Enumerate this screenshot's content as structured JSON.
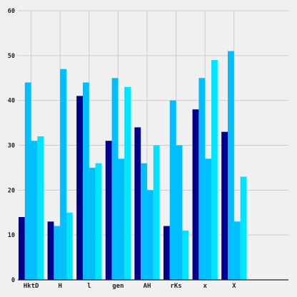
{
  "chart_data": {
    "type": "bar",
    "title": "",
    "xlabel": "",
    "ylabel": "",
    "ylim": [
      0,
      60
    ],
    "yticks": [
      "0",
      "10",
      "20",
      "30",
      "40",
      "50",
      "60"
    ],
    "grid": true,
    "categories": [
      "HktD",
      "H",
      "l",
      "gen",
      "AH",
      "rKs",
      "x",
      "X"
    ],
    "series": [
      {
        "color": "#00008b",
        "values": [
          14,
          13,
          41,
          31,
          34,
          12,
          38,
          33
        ]
      },
      {
        "color": "#00bfff",
        "values": [
          44,
          12,
          44,
          45,
          26,
          40,
          45,
          51
        ]
      },
      {
        "color": "#00bfff",
        "values": [
          31,
          47,
          25,
          27,
          20,
          30,
          27,
          13
        ]
      },
      {
        "color": "#00e5ff",
        "values": [
          32,
          15,
          26,
          43,
          30,
          11,
          49,
          23
        ]
      }
    ]
  },
  "colors": {
    "background": "#f0f0f0",
    "grid": "#cbcbcb",
    "axis": "#222222"
  }
}
